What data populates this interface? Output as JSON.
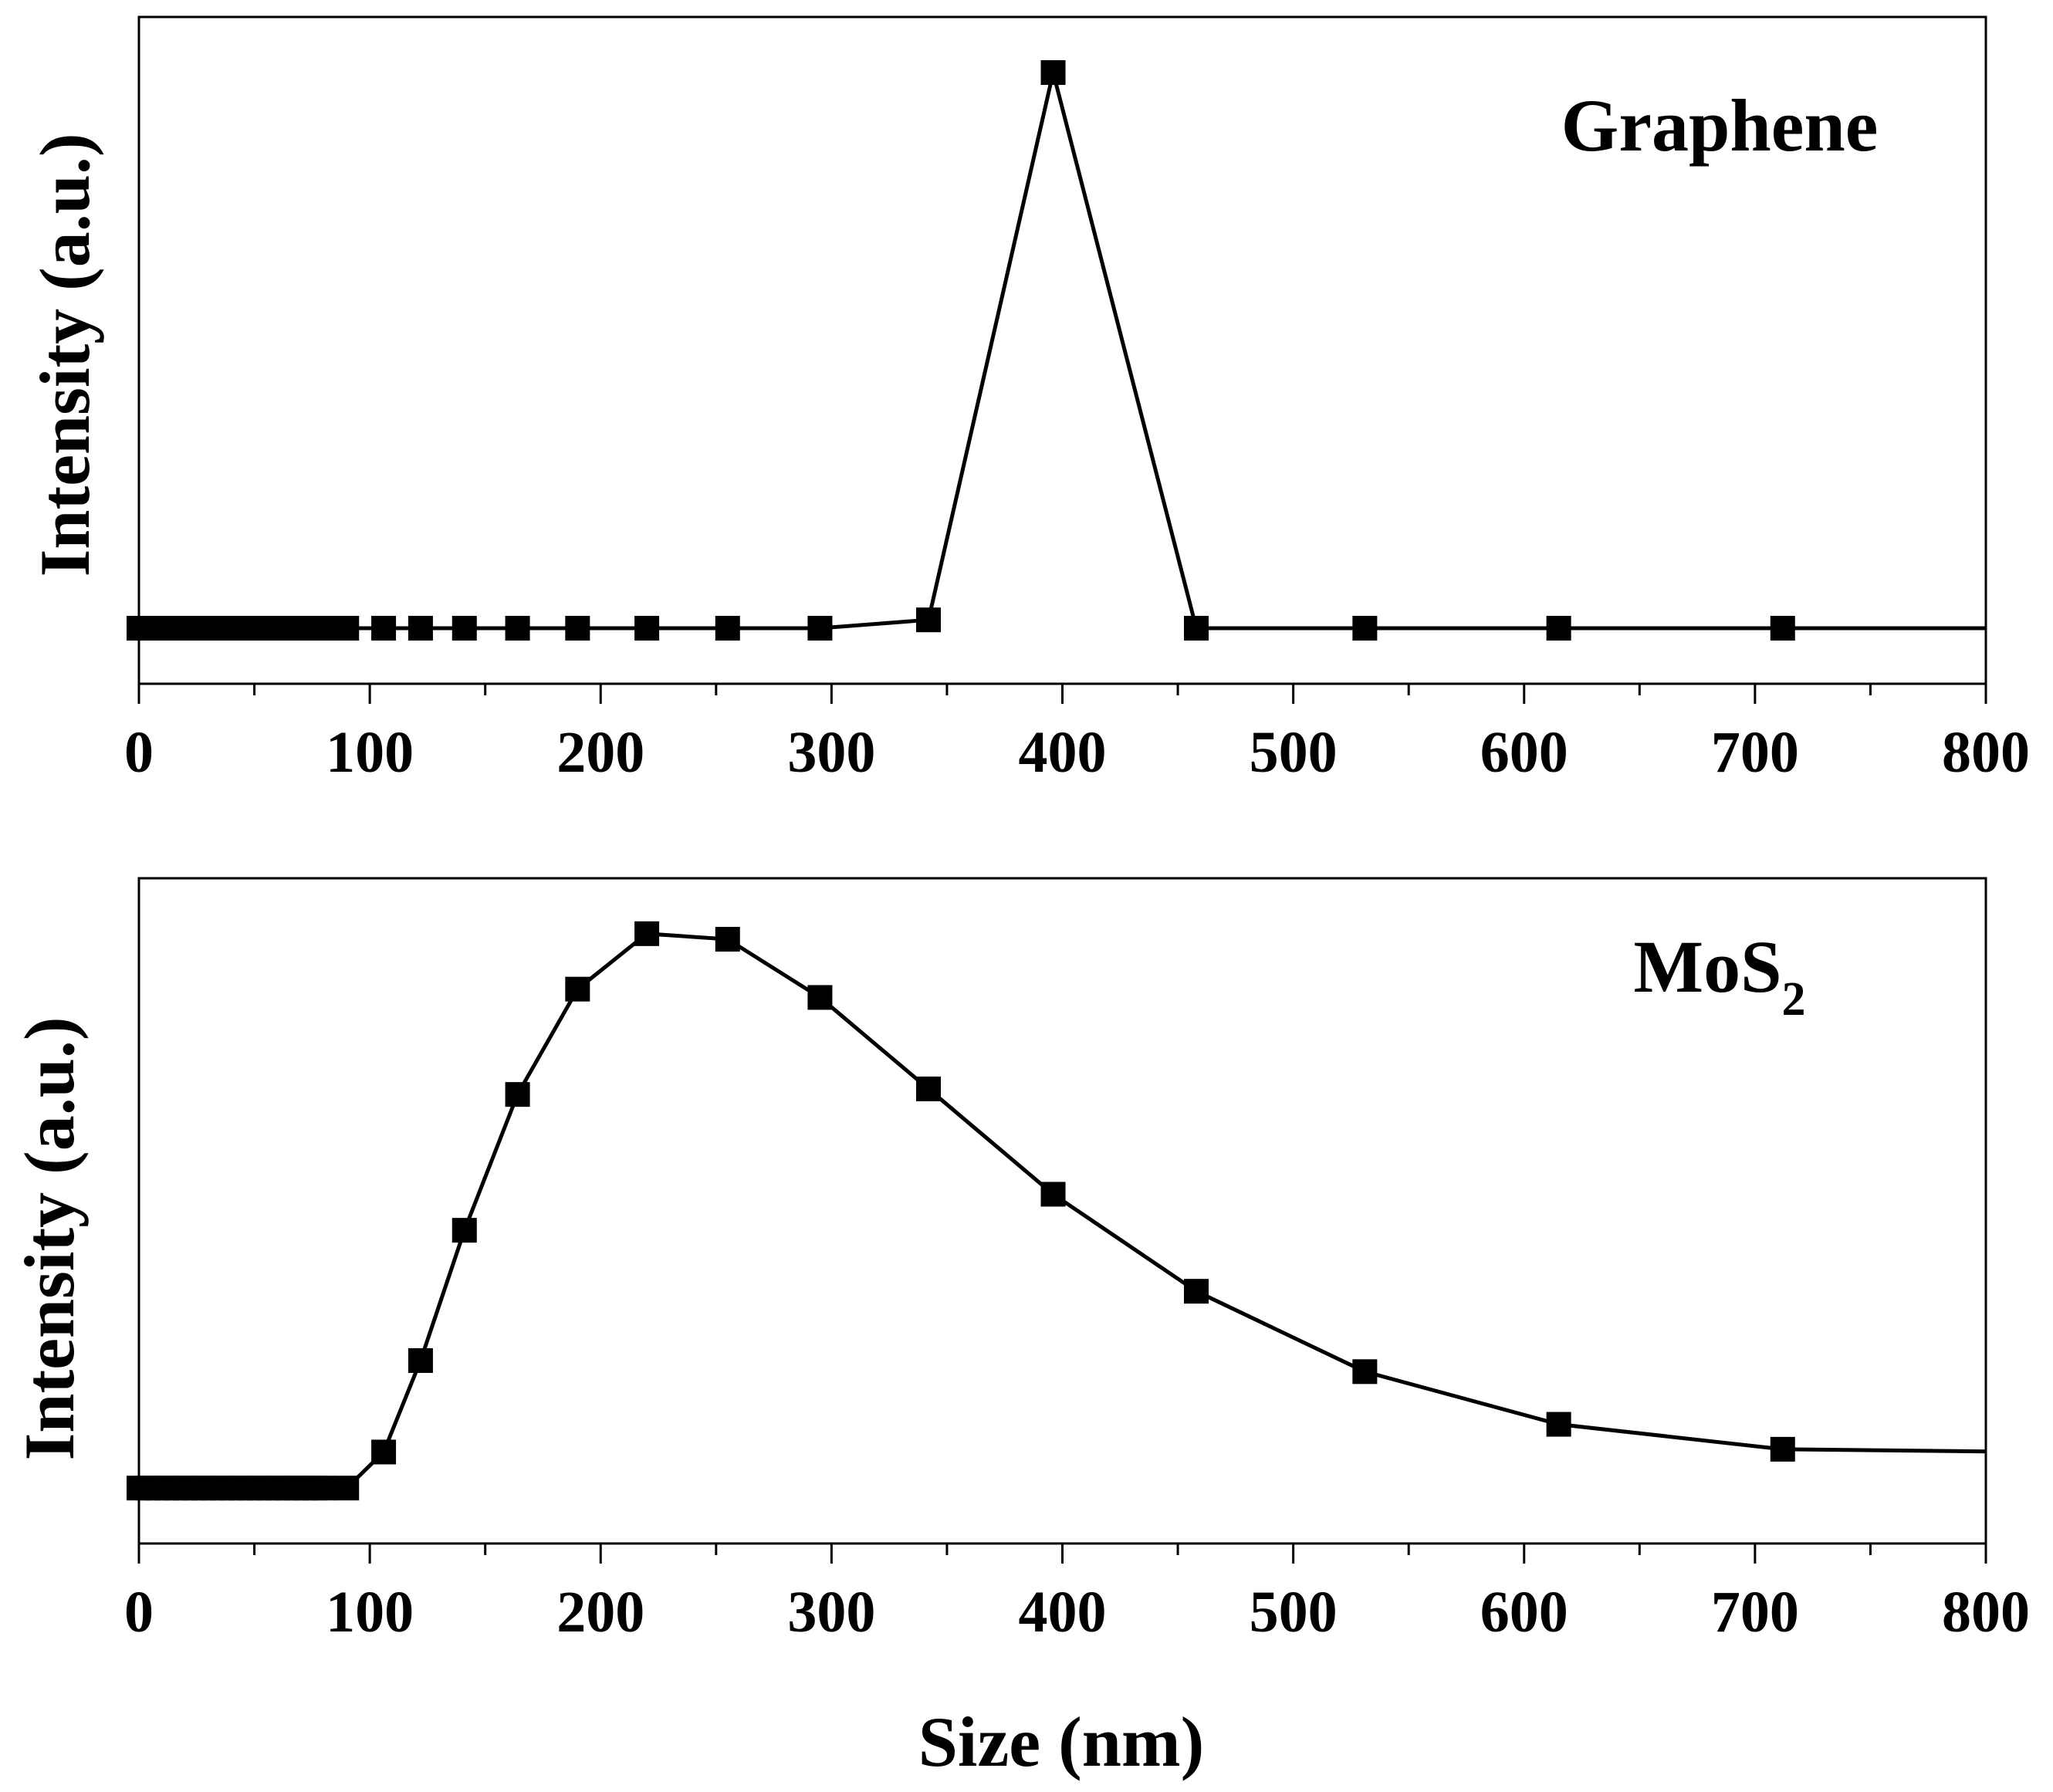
{
  "figure": {
    "xlabel": "Size (nm)"
  },
  "chart_data": [
    {
      "type": "line",
      "title": "Graphene",
      "xlabel": "",
      "ylabel": "Intensity (a.u.)",
      "xlim": [
        0,
        800
      ],
      "ylim": [
        0,
        120
      ],
      "xticks": [
        "0",
        "100",
        "200",
        "300",
        "400",
        "500",
        "600",
        "700",
        "800"
      ],
      "yticks": [],
      "grid": false,
      "marker": "square",
      "series": [
        {
          "name": "Graphene",
          "x": [
            0,
            4,
            8,
            12,
            16,
            20,
            24,
            28,
            32,
            36,
            40,
            44,
            48,
            52,
            56,
            60,
            64,
            68,
            72,
            76,
            80,
            90,
            106,
            122,
            141,
            164,
            190,
            220,
            255,
            295,
            342,
            396,
            458,
            531,
            615,
            712
          ],
          "y": [
            10,
            10,
            10,
            10,
            10,
            10,
            10,
            10,
            10,
            10,
            10,
            10,
            10,
            10,
            10,
            10,
            10,
            10,
            10,
            10,
            10,
            10,
            10,
            10,
            10,
            10,
            10,
            10,
            10,
            10,
            11.5,
            110,
            10,
            10,
            10,
            10
          ]
        }
      ],
      "tail": {
        "x": 800,
        "y": 10
      }
    },
    {
      "type": "line",
      "title": "MoS2",
      "title_main": "MoS",
      "title_sub": "2",
      "xlabel": "Size (nm)",
      "ylabel": "Intensity (a.u.)",
      "xlim": [
        0,
        800
      ],
      "ylim": [
        0,
        120
      ],
      "xticks": [
        "0",
        "100",
        "200",
        "300",
        "400",
        "500",
        "600",
        "700",
        "800"
      ],
      "yticks": [],
      "grid": false,
      "marker": "square",
      "series": [
        {
          "name": "MoS2",
          "x": [
            0,
            4,
            8,
            12,
            16,
            20,
            24,
            28,
            32,
            36,
            40,
            44,
            48,
            52,
            56,
            60,
            64,
            68,
            72,
            76,
            80,
            90,
            106,
            122,
            141,
            164,
            190,
            220,
            255,
            295,
            342,
            396,
            458,
            531,
            615,
            712
          ],
          "y": [
            10,
            10,
            10,
            10,
            10,
            10,
            10,
            10,
            10,
            10,
            10,
            10,
            10,
            10,
            10,
            10,
            10,
            10,
            10,
            10,
            10,
            10,
            16.5,
            33,
            56.5,
            81,
            100,
            110,
            109,
            98.5,
            82,
            63,
            45.5,
            31,
            21.5,
            17
          ]
        }
      ],
      "tail": {
        "x": 800,
        "y": 16.6
      }
    }
  ]
}
